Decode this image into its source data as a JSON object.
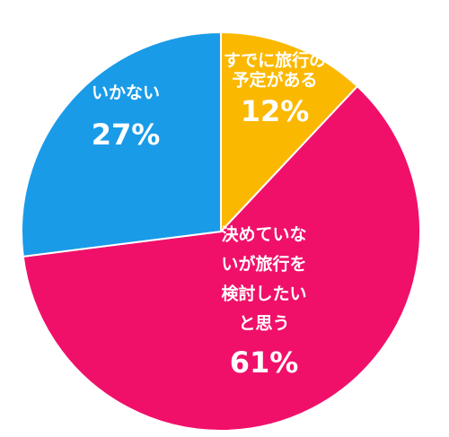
{
  "chart_data": {
    "type": "pie",
    "categories": [
      [
        "すでに旅行の",
        "予定がある"
      ],
      [
        "決めていな",
        "いが旅行を",
        "検討したい",
        "と思う"
      ],
      [
        "いかない"
      ]
    ],
    "values": [
      12,
      61,
      27
    ],
    "value_labels": [
      "12%",
      "61%",
      "27%"
    ],
    "colors": [
      "#fbb800",
      "#f0106a",
      "#1a9be8"
    ]
  }
}
